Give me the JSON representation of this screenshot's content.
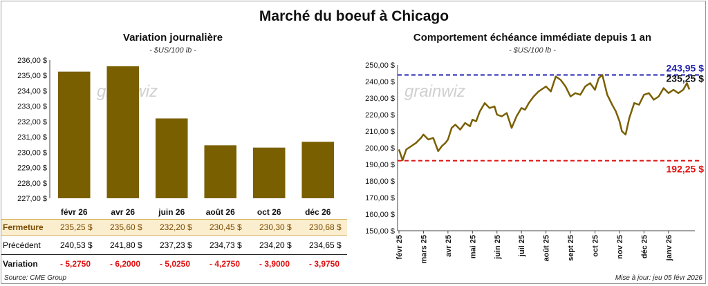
{
  "title": "Marché du boeuf à Chicago",
  "left": {
    "title": "Variation journalière",
    "unit": "- $US/100 lb -",
    "watermark": "grainwiz"
  },
  "right": {
    "title": "Comportement échéance immédiate depuis 1 an",
    "unit": "- $US/100 lb -",
    "watermark": "grainwiz",
    "max_label": "243,95 $",
    "last_label": "235,25 $",
    "min_label": "192,25 $"
  },
  "table": {
    "close_label": "Fermeture",
    "prev_label": "Précédent",
    "var_label": "Variation",
    "close": [
      "235,25 $",
      "235,60 $",
      "232,20 $",
      "230,45 $",
      "230,30 $",
      "230,68 $"
    ],
    "prev": [
      "240,53 $",
      "241,80 $",
      "237,23 $",
      "234,73 $",
      "234,20 $",
      "234,65 $"
    ],
    "var": [
      "- 5,2750",
      "- 6,2000",
      "- 5,0250",
      "- 4,2750",
      "- 3,9000",
      "- 3,9750"
    ]
  },
  "footer": {
    "source": "Source: CME Group",
    "update": "Mise à jour: jeu 05 févr 2026"
  },
  "colors": {
    "bar": "#7a5f00",
    "line": "#7a5f00",
    "max": "#1f1fb0",
    "min": "#e01010",
    "highlight": "#fbeecf"
  },
  "chart_data": [
    {
      "type": "bar",
      "title": "Variation journalière",
      "categories": [
        "févr 26",
        "avr 26",
        "juin 26",
        "août 26",
        "oct 26",
        "déc 26"
      ],
      "values": [
        235.25,
        235.6,
        232.2,
        230.45,
        230.3,
        230.68
      ],
      "ylim": [
        227,
        236
      ],
      "yticks": [
        "227,00 $",
        "228,00 $",
        "229,00 $",
        "230,00 $",
        "231,00 $",
        "232,00 $",
        "233,00 $",
        "234,00 $",
        "235,00 $",
        "236,00 $"
      ],
      "ytick_values": [
        227,
        228,
        229,
        230,
        231,
        232,
        233,
        234,
        235,
        236
      ]
    },
    {
      "type": "line",
      "title": "Comportement échéance immédiate depuis 1 an",
      "ylim": [
        150,
        250
      ],
      "yticks": [
        "150,00 $",
        "160,00 $",
        "170,00 $",
        "180,00 $",
        "190,00 $",
        "200,00 $",
        "210,00 $",
        "220,00 $",
        "230,00 $",
        "240,00 $",
        "250,00 $"
      ],
      "ytick_values": [
        150,
        160,
        170,
        180,
        190,
        200,
        210,
        220,
        230,
        240,
        250
      ],
      "xticks": [
        "févr 25",
        "mars 25",
        "avr 25",
        "mai 25",
        "juin 25",
        "juil 25",
        "août 25",
        "sept 25",
        "oct 25",
        "nov 25",
        "déc 25",
        "janv 26"
      ],
      "xtick_months": [
        0,
        1,
        2,
        3,
        4,
        5,
        6,
        7,
        8,
        9,
        10,
        11
      ],
      "x_months": [
        0,
        0.15,
        0.3,
        0.5,
        0.7,
        0.9,
        1.0,
        1.2,
        1.4,
        1.6,
        1.75,
        1.9,
        2.0,
        2.15,
        2.3,
        2.5,
        2.7,
        2.9,
        3.0,
        3.15,
        3.3,
        3.5,
        3.7,
        3.9,
        4.0,
        4.2,
        4.4,
        4.6,
        4.8,
        5.0,
        5.15,
        5.3,
        5.5,
        5.7,
        5.9,
        6.0,
        6.2,
        6.4,
        6.6,
        6.8,
        7.0,
        7.2,
        7.4,
        7.6,
        7.8,
        8.0,
        8.15,
        8.3,
        8.5,
        8.7,
        8.85,
        9.0,
        9.1,
        9.25,
        9.4,
        9.6,
        9.8,
        10.0,
        10.2,
        10.4,
        10.6,
        10.8,
        11.0,
        11.2,
        11.4,
        11.6,
        11.75,
        11.85
      ],
      "values": [
        199,
        192.5,
        199,
        201,
        203,
        206,
        208,
        205,
        206,
        198,
        201,
        203,
        205,
        212,
        214,
        211,
        215,
        213,
        217,
        216,
        222,
        227,
        224,
        225,
        220,
        219,
        221,
        212,
        219,
        224,
        223,
        227,
        231,
        234,
        236,
        237,
        234,
        243,
        241,
        237,
        231,
        233,
        232,
        237,
        239,
        235,
        242,
        243.95,
        232,
        226,
        222,
        216,
        210,
        208,
        218,
        227,
        226,
        232,
        233,
        229,
        231,
        236,
        233,
        235,
        233,
        235,
        239,
        235.25
      ],
      "hlines": [
        {
          "label": "243,95 $",
          "value": 243.95
        },
        {
          "label": "192,25 $",
          "value": 192.25
        }
      ]
    }
  ]
}
